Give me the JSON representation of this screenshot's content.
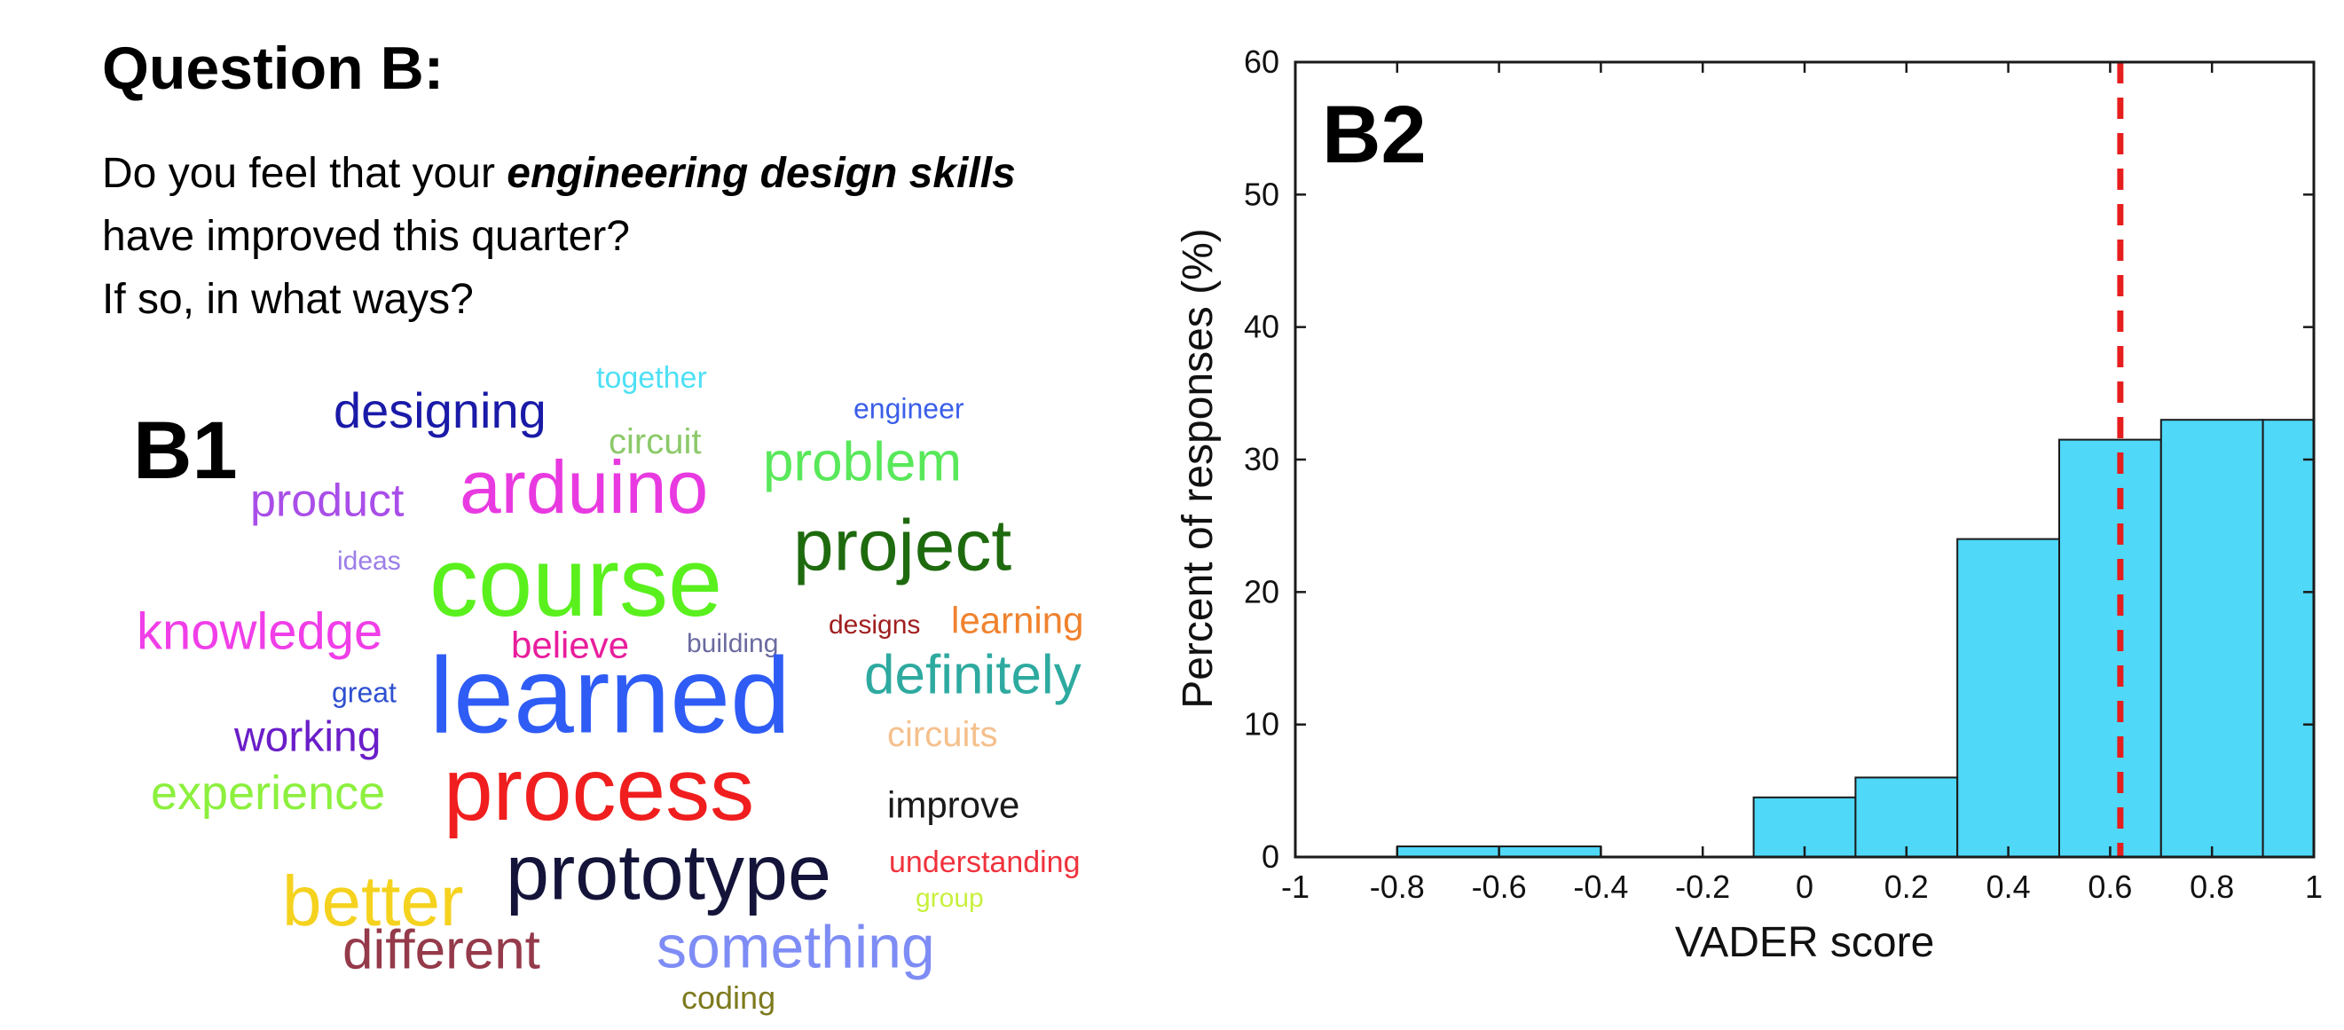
{
  "question": {
    "title": "Question B:",
    "line1_plain": "Do you feel that your ",
    "line1_emphasis": "engineering design skills",
    "line2": "have improved this quarter?",
    "line3": "If so, in what ways?"
  },
  "panels": {
    "b1": "B1",
    "b2": "B2"
  },
  "wordcloud": [
    {
      "text": "together",
      "color": "#4ee0f5"
    },
    {
      "text": "designing",
      "color": "#1a1aa8"
    },
    {
      "text": "engineer",
      "color": "#3a5ee8"
    },
    {
      "text": "circuit",
      "color": "#8cc96a"
    },
    {
      "text": "product",
      "color": "#a94ee8"
    },
    {
      "text": "arduino",
      "color": "#e83ae0"
    },
    {
      "text": "problem",
      "color": "#58e85a"
    },
    {
      "text": "ideas",
      "color": "#9c7ee8"
    },
    {
      "text": "course",
      "color": "#5af01e"
    },
    {
      "text": "project",
      "color": "#1e6a0e"
    },
    {
      "text": "knowledge",
      "color": "#f03ee8"
    },
    {
      "text": "believe",
      "color": "#e81e9c"
    },
    {
      "text": "building",
      "color": "#6a6aa0"
    },
    {
      "text": "designs",
      "color": "#a01e1e"
    },
    {
      "text": "learning",
      "color": "#f0822e"
    },
    {
      "text": "great",
      "color": "#2e50d0"
    },
    {
      "text": "learned",
      "color": "#2e5cf5"
    },
    {
      "text": "definitely",
      "color": "#2eaaa0"
    },
    {
      "text": "working",
      "color": "#6a1ec8"
    },
    {
      "text": "circuits",
      "color": "#f5c08c"
    },
    {
      "text": "experience",
      "color": "#8cf03e"
    },
    {
      "text": "process",
      "color": "#f01e1e"
    },
    {
      "text": "improve",
      "color": "#1a1a1a"
    },
    {
      "text": "better",
      "color": "#f5d21e"
    },
    {
      "text": "prototype",
      "color": "#14143a"
    },
    {
      "text": "understanding",
      "color": "#f0323c"
    },
    {
      "text": "group",
      "color": "#c8f03e"
    },
    {
      "text": "different",
      "color": "#943a4a"
    },
    {
      "text": "something",
      "color": "#7e8cf5"
    },
    {
      "text": "coding",
      "color": "#7e7a1e"
    }
  ],
  "chart_data": {
    "type": "bar",
    "xlabel": "VADER score",
    "ylabel": "Percent of responses (%)",
    "xlim": [
      -1,
      1
    ],
    "ylim": [
      0,
      60
    ],
    "xticks": [
      "-1",
      "-0.8",
      "-0.6",
      "-0.4",
      "-0.2",
      "0",
      "0.2",
      "0.4",
      "0.6",
      "0.8",
      "1"
    ],
    "yticks": [
      "0",
      "10",
      "20",
      "30",
      "40",
      "50",
      "60"
    ],
    "bins": [
      {
        "x0": -0.8,
        "x1": -0.6,
        "value": 0.8
      },
      {
        "x0": -0.6,
        "x1": -0.4,
        "value": 0.8
      },
      {
        "x0": -0.1,
        "x1": 0.1,
        "value": 4.5
      },
      {
        "x0": 0.1,
        "x1": 0.3,
        "value": 6.0
      },
      {
        "x0": 0.3,
        "x1": 0.5,
        "value": 24.0
      },
      {
        "x0": 0.5,
        "x1": 0.7,
        "value": 31.5
      },
      {
        "x0": 0.7,
        "x1": 0.9,
        "value": 33.0
      },
      {
        "x0": 0.9,
        "x1": 1.1,
        "value": 33.0
      }
    ],
    "mean_line": 0.62,
    "bar_color": "#4fd8f8",
    "mean_line_color": "#e61e1e"
  }
}
